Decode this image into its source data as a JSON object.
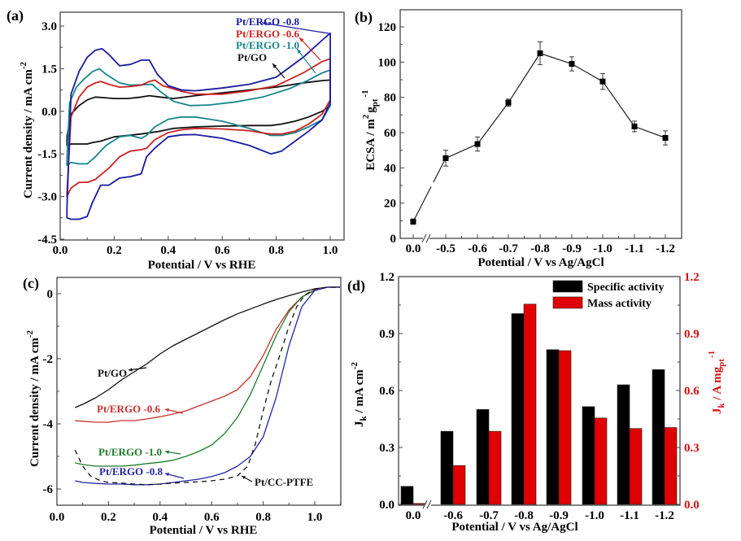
{
  "figure": {
    "panels": [
      "(a)",
      "(b)",
      "(c)",
      "(d)"
    ]
  },
  "chart_data": [
    {
      "id": "a",
      "type": "line",
      "panel_label": "(a)",
      "title": "",
      "xlabel": "Potential / V vs RHE",
      "ylabel": "Current density / mA cm",
      "ylabel_sup": "-2",
      "xlim": [
        0.0,
        1.05
      ],
      "ylim": [
        -4.5,
        3.5
      ],
      "xticks": [
        "0.0",
        "0.2",
        "0.4",
        "0.6",
        "0.8",
        "1.0"
      ],
      "xtick_values": [
        0.0,
        0.2,
        0.4,
        0.6,
        0.8,
        1.0
      ],
      "yticks": [
        "3.0",
        "1.5",
        "0.0",
        "-1.5",
        "-3.0",
        "-4.5"
      ],
      "ytick_values": [
        3.0,
        1.5,
        0.0,
        -1.5,
        -3.0,
        -4.5
      ],
      "grid": false,
      "series": [
        {
          "name": "Pt/ERGO -0.8",
          "color": "#1a1aa0",
          "x": [
            0.025,
            0.04,
            0.07,
            0.1,
            0.13,
            0.155,
            0.18,
            0.22,
            0.26,
            0.3,
            0.33,
            0.36,
            0.4,
            0.45,
            0.5,
            0.6,
            0.7,
            0.8,
            0.9,
            0.97,
            1.0,
            1.0,
            0.97,
            0.92,
            0.87,
            0.82,
            0.78,
            0.74,
            0.7,
            0.6,
            0.5,
            0.45,
            0.4,
            0.35,
            0.32,
            0.3,
            0.26,
            0.22,
            0.18,
            0.15,
            0.12,
            0.1,
            0.07,
            0.04,
            0.025,
            0.025
          ],
          "y": [
            -3.4,
            0.6,
            1.4,
            1.9,
            2.15,
            2.2,
            2.0,
            1.6,
            1.65,
            1.8,
            1.8,
            1.3,
            0.9,
            0.75,
            0.72,
            0.82,
            0.95,
            1.2,
            1.9,
            2.5,
            2.75,
            0.3,
            -0.3,
            -0.7,
            -1.05,
            -1.4,
            -1.5,
            -1.35,
            -1.2,
            -0.95,
            -0.82,
            -0.83,
            -0.9,
            -1.3,
            -1.6,
            -2.2,
            -2.3,
            -2.35,
            -2.6,
            -2.6,
            -3.2,
            -3.7,
            -3.8,
            -3.8,
            -3.75,
            -3.4
          ]
        },
        {
          "name": "Pt/ERGO -0.6",
          "color": "#cc2222",
          "x": [
            0.025,
            0.04,
            0.07,
            0.1,
            0.13,
            0.15,
            0.18,
            0.22,
            0.26,
            0.3,
            0.33,
            0.35,
            0.38,
            0.45,
            0.5,
            0.6,
            0.7,
            0.8,
            0.9,
            0.97,
            1.0,
            1.0,
            0.97,
            0.92,
            0.87,
            0.82,
            0.78,
            0.74,
            0.7,
            0.6,
            0.5,
            0.45,
            0.4,
            0.35,
            0.32,
            0.3,
            0.26,
            0.22,
            0.18,
            0.13,
            0.1,
            0.07,
            0.04,
            0.025,
            0.025
          ],
          "y": [
            -2.9,
            -0.2,
            0.5,
            0.85,
            1.0,
            1.05,
            0.95,
            0.85,
            0.87,
            0.92,
            1.05,
            1.1,
            0.9,
            0.7,
            0.6,
            0.6,
            0.72,
            0.9,
            1.35,
            1.75,
            1.85,
            0.4,
            -0.1,
            -0.45,
            -0.7,
            -0.8,
            -0.8,
            -0.75,
            -0.68,
            -0.62,
            -0.6,
            -0.65,
            -0.75,
            -1.0,
            -1.3,
            -1.35,
            -1.4,
            -1.6,
            -2.0,
            -2.4,
            -2.5,
            -2.5,
            -2.7,
            -3.0,
            -2.9
          ]
        },
        {
          "name": "Pt/ERGO -1.0",
          "color": "#17858a",
          "x": [
            0.025,
            0.035,
            0.06,
            0.09,
            0.12,
            0.145,
            0.17,
            0.22,
            0.26,
            0.3,
            0.34,
            0.37,
            0.42,
            0.48,
            0.55,
            0.65,
            0.75,
            0.85,
            0.92,
            0.97,
            1.0,
            1.0,
            0.97,
            0.92,
            0.87,
            0.82,
            0.78,
            0.7,
            0.6,
            0.5,
            0.45,
            0.4,
            0.35,
            0.32,
            0.3,
            0.26,
            0.22,
            0.17,
            0.13,
            0.1,
            0.07,
            0.04,
            0.025,
            0.025
          ],
          "y": [
            -1.7,
            0.3,
            0.85,
            1.15,
            1.4,
            1.5,
            1.3,
            1.0,
            0.92,
            0.93,
            0.95,
            0.7,
            0.35,
            0.2,
            0.22,
            0.33,
            0.5,
            0.8,
            1.1,
            1.35,
            1.45,
            0.2,
            -0.3,
            -0.55,
            -0.75,
            -0.85,
            -0.85,
            -0.6,
            -0.35,
            -0.2,
            -0.2,
            -0.28,
            -0.55,
            -0.85,
            -0.95,
            -0.85,
            -0.9,
            -1.2,
            -1.6,
            -1.85,
            -1.85,
            -1.8,
            -1.9,
            -1.7
          ]
        },
        {
          "name": "Pt/GO",
          "color": "#111111",
          "x": [
            0.025,
            0.04,
            0.07,
            0.1,
            0.13,
            0.16,
            0.2,
            0.25,
            0.3,
            0.33,
            0.37,
            0.42,
            0.5,
            0.6,
            0.7,
            0.8,
            0.9,
            0.97,
            1.0,
            1.0,
            0.97,
            0.92,
            0.87,
            0.82,
            0.78,
            0.7,
            0.6,
            0.5,
            0.42,
            0.37,
            0.3,
            0.25,
            0.2,
            0.15,
            0.12,
            0.1,
            0.07,
            0.04,
            0.025,
            0.025
          ],
          "y": [
            -0.9,
            -0.1,
            0.2,
            0.4,
            0.5,
            0.48,
            0.45,
            0.45,
            0.5,
            0.55,
            0.5,
            0.45,
            0.55,
            0.65,
            0.75,
            0.85,
            1.0,
            1.08,
            1.1,
            0.2,
            0.0,
            -0.2,
            -0.35,
            -0.45,
            -0.5,
            -0.5,
            -0.52,
            -0.55,
            -0.6,
            -0.7,
            -0.8,
            -0.85,
            -0.9,
            -1.05,
            -1.1,
            -1.15,
            -1.15,
            -1.15,
            -1.2,
            -0.9
          ]
        }
      ],
      "annotations": [
        {
          "text": "Pt/ERGO -0.8",
          "color": "#1a1aa0"
        },
        {
          "text": "Pt/ERGO -0.6",
          "color": "#cc2222"
        },
        {
          "text": "Pt/ERGO -1.0",
          "color": "#17858a"
        },
        {
          "text": "Pt/GO",
          "color": "#111111"
        }
      ]
    },
    {
      "id": "b",
      "type": "line",
      "panel_label": "(b)",
      "title": "",
      "xlabel": "Potential / V vs Ag/AgCl",
      "ylabel": "ECSA / m",
      "ylabel_sup1": "2",
      "ylabel_g": "g",
      "ylabel_sub": "pt",
      "ylabel_sup2": "-1",
      "ylim": [
        0,
        130
      ],
      "yticks": [
        "0",
        "20",
        "40",
        "60",
        "80",
        "100",
        "120"
      ],
      "ytick_values": [
        0,
        20,
        40,
        60,
        80,
        100,
        120
      ],
      "categories": [
        "0.0",
        "-0.5",
        "-0.6",
        "-0.7",
        "-0.8",
        "-0.9",
        "-1.0",
        "-1.1",
        "-1.2"
      ],
      "axis_break": "between 0.0 and -0.5",
      "grid": false,
      "series": [
        {
          "name": "ECSA",
          "color": "#222222",
          "values": [
            9.5,
            45.5,
            53.5,
            77,
            105,
            99,
            89,
            63.5,
            57
          ],
          "errors": [
            1.5,
            4.5,
            4,
            2,
            6.5,
            4,
            4.5,
            3,
            4
          ]
        }
      ]
    },
    {
      "id": "c",
      "type": "line",
      "panel_label": "(c)",
      "title": "",
      "xlabel": "Potential / V vs RHE",
      "ylabel": "Current density / mA cm",
      "ylabel_sup": "-2",
      "xlim": [
        0.0,
        1.1
      ],
      "ylim": [
        -6.5,
        0.5
      ],
      "xticks": [
        "0.0",
        "0.2",
        "0.4",
        "0.6",
        "0.8",
        "1.0"
      ],
      "xtick_values": [
        0.0,
        0.2,
        0.4,
        0.6,
        0.8,
        1.0
      ],
      "yticks": [
        "0",
        "-2",
        "-4",
        "-6"
      ],
      "ytick_values": [
        0,
        -2,
        -4,
        -6
      ],
      "grid": false,
      "series": [
        {
          "name": "Pt/GO",
          "color": "#111111",
          "dash": false,
          "x": [
            0.07,
            0.1,
            0.15,
            0.2,
            0.25,
            0.3,
            0.35,
            0.4,
            0.45,
            0.5,
            0.55,
            0.6,
            0.65,
            0.7,
            0.75,
            0.8,
            0.85,
            0.9,
            0.95,
            1.0,
            1.05,
            1.1
          ],
          "y": [
            -3.5,
            -3.4,
            -3.2,
            -2.95,
            -2.65,
            -2.4,
            -2.15,
            -1.85,
            -1.6,
            -1.4,
            -1.2,
            -1.0,
            -0.8,
            -0.62,
            -0.47,
            -0.32,
            -0.18,
            -0.06,
            0.05,
            0.15,
            0.2,
            0.2
          ]
        },
        {
          "name": "Pt/ERGO -0.6",
          "color": "#c8312c",
          "dash": false,
          "x": [
            0.07,
            0.1,
            0.15,
            0.2,
            0.25,
            0.3,
            0.35,
            0.4,
            0.45,
            0.5,
            0.55,
            0.6,
            0.65,
            0.7,
            0.75,
            0.8,
            0.85,
            0.9,
            0.95,
            1.0,
            1.05,
            1.1
          ],
          "y": [
            -3.9,
            -3.92,
            -3.95,
            -3.95,
            -3.9,
            -3.9,
            -3.85,
            -3.78,
            -3.7,
            -3.6,
            -3.45,
            -3.3,
            -3.15,
            -2.95,
            -2.55,
            -1.9,
            -1.1,
            -0.5,
            -0.1,
            0.12,
            0.2,
            0.2
          ]
        },
        {
          "name": "Pt/ERGO -1.0",
          "color": "#1f7a2a",
          "dash": false,
          "x": [
            0.07,
            0.1,
            0.15,
            0.2,
            0.25,
            0.3,
            0.35,
            0.4,
            0.45,
            0.5,
            0.55,
            0.6,
            0.65,
            0.7,
            0.75,
            0.8,
            0.85,
            0.9,
            0.95,
            1.0,
            1.05,
            1.1
          ],
          "y": [
            -5.2,
            -5.25,
            -5.3,
            -5.3,
            -5.3,
            -5.27,
            -5.22,
            -5.18,
            -5.12,
            -5.0,
            -4.85,
            -4.65,
            -4.3,
            -3.8,
            -3.1,
            -2.2,
            -1.3,
            -0.55,
            -0.1,
            0.1,
            0.2,
            0.2
          ]
        },
        {
          "name": "Pt/ERGO -0.8",
          "color": "#2424a8",
          "dash": false,
          "x": [
            0.07,
            0.1,
            0.15,
            0.2,
            0.25,
            0.3,
            0.35,
            0.4,
            0.45,
            0.5,
            0.55,
            0.6,
            0.65,
            0.7,
            0.75,
            0.8,
            0.85,
            0.9,
            0.95,
            1.0,
            1.05,
            1.1
          ],
          "y": [
            -5.75,
            -5.8,
            -5.83,
            -5.85,
            -5.85,
            -5.87,
            -5.87,
            -5.85,
            -5.8,
            -5.75,
            -5.7,
            -5.62,
            -5.5,
            -5.3,
            -5.0,
            -4.4,
            -3.2,
            -1.6,
            -0.4,
            0.1,
            0.2,
            0.2
          ]
        },
        {
          "name": "Pt/CC-PTFE",
          "color": "#111111",
          "dash": true,
          "x": [
            0.07,
            0.1,
            0.13,
            0.17,
            0.2,
            0.25,
            0.3,
            0.35,
            0.4,
            0.45,
            0.5,
            0.55,
            0.6,
            0.65,
            0.7,
            0.74,
            0.77,
            0.8,
            0.83,
            0.86,
            0.88,
            0.9,
            0.93,
            0.96,
            1.0,
            1.05,
            1.1
          ],
          "y": [
            -4.8,
            -5.3,
            -5.6,
            -5.75,
            -5.8,
            -5.82,
            -5.85,
            -5.87,
            -5.85,
            -5.82,
            -5.8,
            -5.78,
            -5.75,
            -5.7,
            -5.6,
            -5.3,
            -4.6,
            -3.6,
            -2.7,
            -2.0,
            -1.5,
            -1.0,
            -0.4,
            -0.05,
            0.15,
            0.2,
            0.2
          ]
        }
      ],
      "annotations": [
        {
          "text": "Pt/GO",
          "color": "#111111"
        },
        {
          "text": "Pt/ERGO -0.6",
          "color": "#c8312c"
        },
        {
          "text": "Pt/ERGO -1.0",
          "color": "#1f7a2a"
        },
        {
          "text": "Pt/ERGO -0.8",
          "color": "#2424a8"
        },
        {
          "text": "Pt/CC-PTFE",
          "color": "#111111"
        }
      ]
    },
    {
      "id": "d",
      "type": "bar",
      "panel_label": "(d)",
      "title": "",
      "xlabel": "Potential / V vs Ag/AgCl",
      "ylabel": "J",
      "ylabel_sub": "k",
      "ylabel_rest": " / mA cm",
      "ylabel_sup": "-2",
      "ylabel_right": "J",
      "ylabel_right_sub": "k",
      "ylabel_right_rest": " / A mg",
      "ylabel_right_sub2": "pt",
      "ylabel_right_sup": "-1",
      "ylabel_right_color": "#d01010",
      "ylim": [
        0,
        1.2
      ],
      "ylim_right": [
        0,
        1.2
      ],
      "yticks": [
        "0.0",
        "0.3",
        "0.6",
        "0.9",
        "1.2"
      ],
      "ytick_values": [
        0.0,
        0.3,
        0.6,
        0.9,
        1.2
      ],
      "categories": [
        "0.0",
        "-0.6",
        "-0.7",
        "-0.8",
        "-0.9",
        "-1.0",
        "-1.1",
        "-1.2"
      ],
      "axis_break": "between 0.0 and -0.6",
      "legend_position": "top-right",
      "grid": false,
      "series": [
        {
          "name": "Specific activity",
          "color": "#000000",
          "axis": "left",
          "values": [
            0.095,
            0.385,
            0.5,
            1.005,
            0.815,
            0.515,
            0.63,
            0.71
          ]
        },
        {
          "name": "Mass activity",
          "color": "#e00000",
          "axis": "right",
          "values": [
            0.005,
            0.205,
            0.385,
            1.055,
            0.81,
            0.455,
            0.4,
            0.405
          ]
        }
      ]
    }
  ]
}
